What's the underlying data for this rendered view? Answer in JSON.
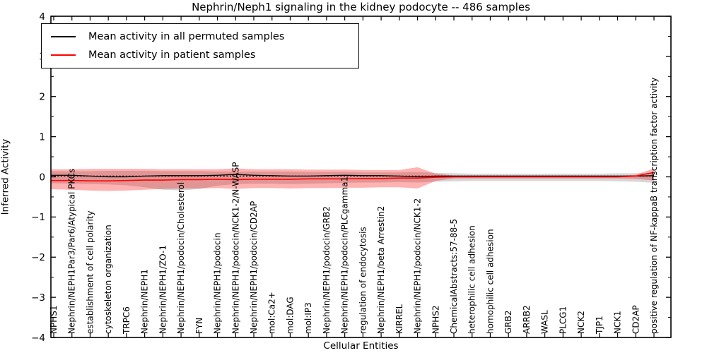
{
  "colors": {
    "foreground": "#000000",
    "background": "#ffffff",
    "permuted_line": "#000000",
    "patient_line": "#ff0000",
    "permuted_band": "#999999",
    "patient_band": "#ff0000"
  },
  "axes": {
    "xlabel": "Cellular Entities",
    "ylabel": "Inferred Activity",
    "ytick_labels": [
      "4",
      "3",
      "2",
      "1",
      "0",
      "−1",
      "−2",
      "−3",
      "−4"
    ]
  },
  "chart_data": {
    "type": "line",
    "title": "Nephrin/Neph1 signaling in the kidney podocyte -- 486 samples",
    "xlabel": "Cellular Entities",
    "ylabel": "Inferred Activity",
    "ylim": [
      -4,
      4
    ],
    "grid": false,
    "legend_position": "upper left",
    "categories": [
      "NPHS1",
      "Nephrin/NEPH1Par3/Par6/Atypical PKCs",
      "establishment of cell polarity",
      "cytoskeleton organization",
      "TRPC6",
      "Nephrin/NEPH1",
      "Nephrin/NEPH1/ZO-1",
      "Nephrin/NEPH1/podocin/Cholesterol",
      "FYN",
      "Nephrin/NEPH1/podocin",
      "Nephrin/NEPH1/podocin/NCK1-2/N-WASP",
      "Nephrin/NEPH1/podocin/CD2AP",
      "mol:Ca2+",
      "mol:DAG",
      "mol:IP3",
      "Nephrin/NEPH1/podocin/GRB2",
      "Nephrin/NEPH1/podocin/PLCgamma1",
      "regulation of endocytosis",
      "Nephrin/NEPH1/beta Arrestin2",
      "KIRREL",
      "Nephrin/NEPH1/podocin/NCK1-2",
      "NPHS2",
      "ChemicalAbstracts:57-88-5",
      "heterophilic cell adhesion",
      "homophilic cell adhesion",
      "GRB2",
      "ARRB2",
      "WASL",
      "PLCG1",
      "NCK2",
      "TJP1",
      "NCK1",
      "CD2AP",
      "positive regulation of NF-kappaB transcription factor activity"
    ],
    "series": [
      {
        "name": "Mean activity in all permuted samples",
        "color": "#000000",
        "style": "solid",
        "width": 1.3,
        "values": [
          0.04,
          0.04,
          0.02,
          0.0,
          0.0,
          0.02,
          0.03,
          0.03,
          0.03,
          0.04,
          0.06,
          0.04,
          0.03,
          0.02,
          0.02,
          0.03,
          0.04,
          0.03,
          0.03,
          0.02,
          0.0,
          0.02,
          0.02,
          0.02,
          0.02,
          0.02,
          0.02,
          0.02,
          0.02,
          0.02,
          0.02,
          0.02,
          0.02,
          0.03
        ]
      },
      {
        "name": "Mean activity in patient samples",
        "color": "#ff0000",
        "style": "solid",
        "width": 1.6,
        "values": [
          -0.09,
          -0.09,
          -0.1,
          -0.1,
          -0.09,
          -0.08,
          -0.08,
          -0.07,
          -0.07,
          -0.06,
          -0.07,
          -0.06,
          -0.06,
          -0.06,
          -0.05,
          -0.05,
          -0.05,
          -0.04,
          -0.04,
          -0.03,
          -0.03,
          -0.01,
          0.0,
          0.0,
          0.0,
          0.0,
          0.0,
          0.0,
          0.0,
          0.0,
          0.0,
          0.0,
          0.02,
          0.11
        ]
      },
      {
        "name": "zero-reference",
        "color": "#000000",
        "style": "dashed",
        "width": 1.2,
        "constant": 0.02
      }
    ],
    "bands": [
      {
        "name": "permuted-sample-range",
        "color": "#999999",
        "opacity": 0.4,
        "upper": [
          0.14,
          0.14,
          0.14,
          0.15,
          0.15,
          0.15,
          0.14,
          0.14,
          0.14,
          0.13,
          0.13,
          0.13,
          0.13,
          0.13,
          0.12,
          0.12,
          0.12,
          0.11,
          0.11,
          0.11,
          0.12,
          0.1,
          0.09,
          0.08,
          0.08,
          0.08,
          0.08,
          0.08,
          0.08,
          0.08,
          0.08,
          0.09,
          0.09,
          0.1
        ],
        "lower": [
          -0.16,
          -0.17,
          -0.18,
          -0.19,
          -0.21,
          -0.26,
          -0.32,
          -0.34,
          -0.3,
          -0.22,
          -0.18,
          -0.17,
          -0.17,
          -0.18,
          -0.17,
          -0.16,
          -0.15,
          -0.14,
          -0.14,
          -0.13,
          -0.14,
          -0.12,
          -0.11,
          -0.1,
          -0.1,
          -0.1,
          -0.1,
          -0.1,
          -0.1,
          -0.1,
          -0.1,
          -0.11,
          -0.12,
          -0.15
        ]
      },
      {
        "name": "patient-sample-range",
        "color": "#ff0000",
        "opacity": 0.3,
        "upper": [
          0.19,
          0.19,
          0.2,
          0.2,
          0.2,
          0.2,
          0.19,
          0.19,
          0.19,
          0.19,
          0.21,
          0.19,
          0.19,
          0.19,
          0.18,
          0.18,
          0.18,
          0.17,
          0.17,
          0.17,
          0.24,
          0.08,
          0.03,
          0.03,
          0.03,
          0.03,
          0.03,
          0.03,
          0.03,
          0.03,
          0.03,
          0.03,
          0.05,
          0.21
        ],
        "lower": [
          -0.31,
          -0.32,
          -0.34,
          -0.35,
          -0.34,
          -0.32,
          -0.3,
          -0.29,
          -0.29,
          -0.28,
          -0.3,
          -0.28,
          -0.28,
          -0.29,
          -0.28,
          -0.28,
          -0.27,
          -0.27,
          -0.26,
          -0.26,
          -0.29,
          -0.1,
          -0.04,
          -0.04,
          -0.04,
          -0.04,
          -0.04,
          -0.04,
          -0.04,
          -0.04,
          -0.04,
          -0.04,
          -0.05,
          -0.09
        ]
      }
    ]
  },
  "legend": {
    "items": [
      {
        "label": "Mean activity in all permuted samples",
        "color": "#000000"
      },
      {
        "label": "Mean activity in patient samples",
        "color": "#ff0000"
      }
    ]
  }
}
